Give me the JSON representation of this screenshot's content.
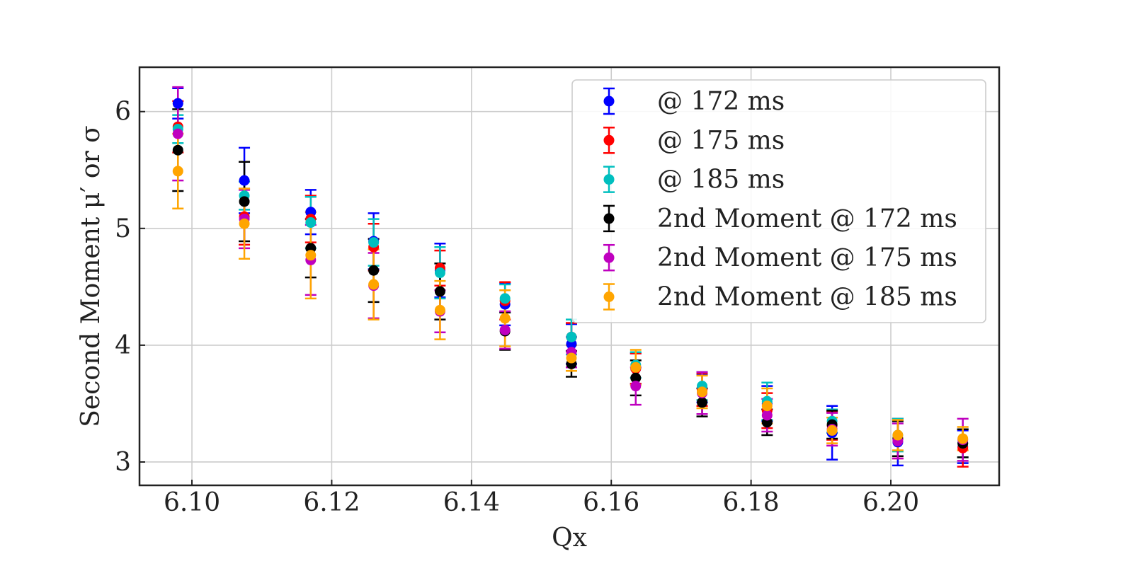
{
  "chart_data": {
    "type": "scatter",
    "xlabel": "Qx",
    "ylabel": "Second Moment μ′ or σ",
    "xlim": [
      6.0925,
      6.2155
    ],
    "ylim": [
      2.8,
      6.38
    ],
    "xticks": [
      6.1,
      6.12,
      6.14,
      6.16,
      6.18,
      6.2
    ],
    "xtick_labels": [
      "6.10",
      "6.12",
      "6.14",
      "6.16",
      "6.18",
      "6.20"
    ],
    "yticks": [
      3,
      4,
      5,
      6
    ],
    "ytick_labels": [
      "3",
      "4",
      "5",
      "6"
    ],
    "grid": true,
    "legend_position": "top-right",
    "x": [
      6.098,
      6.1075,
      6.117,
      6.126,
      6.1355,
      6.1448,
      6.1543,
      6.1635,
      6.173,
      6.1823,
      6.1916,
      6.201,
      6.2103
    ],
    "series": [
      {
        "name": "@ 172 ms",
        "color": "#0000ff",
        "values": [
          6.07,
          5.41,
          5.14,
          4.89,
          4.64,
          4.35,
          4.01,
          3.8,
          3.63,
          3.5,
          3.25,
          3.17,
          3.13
        ],
        "errors": [
          0.13,
          0.28,
          0.19,
          0.24,
          0.23,
          0.18,
          0.17,
          0.13,
          0.12,
          0.15,
          0.23,
          0.2,
          0.14
        ]
      },
      {
        "name": "@ 175 ms",
        "color": "#ff0000",
        "values": [
          5.87,
          5.1,
          5.08,
          4.84,
          4.66,
          4.38,
          4.07,
          3.8,
          3.62,
          3.44,
          3.31,
          3.2,
          3.12
        ],
        "errors": [
          0.22,
          0.24,
          0.2,
          0.2,
          0.15,
          0.16,
          0.12,
          0.13,
          0.14,
          0.15,
          0.12,
          0.17,
          0.16
        ]
      },
      {
        "name": "@ 185 ms",
        "color": "#00bfbf",
        "values": [
          5.85,
          5.28,
          5.05,
          4.88,
          4.62,
          4.4,
          4.07,
          3.83,
          3.65,
          3.52,
          3.35,
          3.23,
          3.16
        ],
        "errors": [
          0.12,
          0.12,
          0.22,
          0.2,
          0.22,
          0.12,
          0.15,
          0.11,
          0.12,
          0.16,
          0.1,
          0.14,
          0.12
        ]
      },
      {
        "name": "2nd Moment @ 172 ms",
        "color": "#000000",
        "values": [
          5.67,
          5.23,
          4.83,
          4.64,
          4.46,
          4.12,
          3.84,
          3.72,
          3.51,
          3.34,
          3.32,
          3.2,
          3.16
        ],
        "errors": [
          0.35,
          0.34,
          0.25,
          0.27,
          0.24,
          0.16,
          0.11,
          0.15,
          0.12,
          0.11,
          0.12,
          0.15,
          0.12
        ]
      },
      {
        "name": "2nd Moment @ 175 ms",
        "color": "#bf00bf",
        "values": [
          5.81,
          5.08,
          4.73,
          4.51,
          4.29,
          4.13,
          3.94,
          3.65,
          3.59,
          3.4,
          3.28,
          3.18,
          3.19
        ],
        "errors": [
          0.4,
          0.25,
          0.3,
          0.28,
          0.18,
          0.16,
          0.13,
          0.16,
          0.18,
          0.14,
          0.14,
          0.15,
          0.18
        ]
      },
      {
        "name": "2nd Moment @ 185 ms",
        "color": "#ffa500",
        "values": [
          5.49,
          5.04,
          4.77,
          4.52,
          4.3,
          4.23,
          3.89,
          3.81,
          3.6,
          3.48,
          3.27,
          3.23,
          3.2
        ],
        "errors": [
          0.32,
          0.3,
          0.37,
          0.3,
          0.25,
          0.24,
          0.11,
          0.15,
          0.14,
          0.15,
          0.11,
          0.13,
          0.1
        ]
      }
    ]
  }
}
